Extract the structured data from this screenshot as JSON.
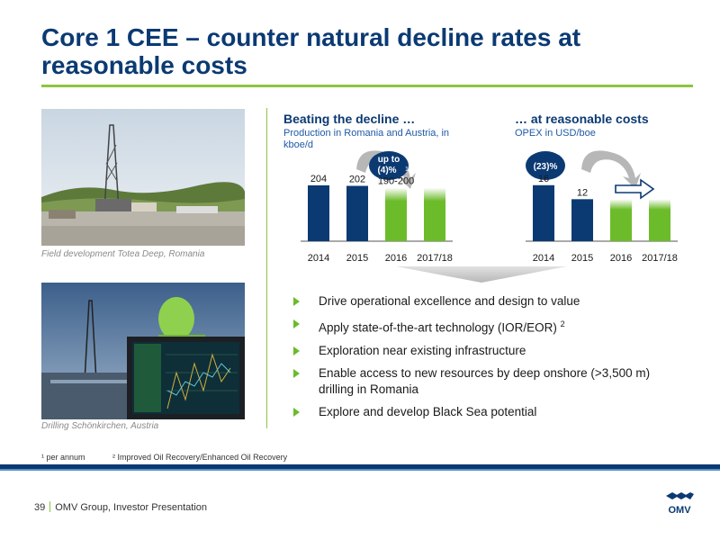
{
  "title": "Core 1 CEE – counter natural decline rates at reasonable costs",
  "photos": [
    {
      "caption": "Field development Totea Deep, Romania"
    },
    {
      "caption": "Drilling Schönkirchen, Austria"
    }
  ],
  "left_chart": {
    "heading": "Beating the decline …",
    "subtitle": "Production in Romania and Austria, in kboe/d",
    "badge": "up to (4)%",
    "badge_footnote": "1"
  },
  "right_chart": {
    "heading": "… at reasonable costs",
    "subtitle": "OPEX in USD/boe",
    "badge": "(23)%"
  },
  "chart_data": [
    {
      "type": "bar",
      "title": "Beating the decline …",
      "subtitle": "Production in Romania and Austria, in kboe/d",
      "categories": [
        "2014",
        "2015",
        "2016",
        "2017/18"
      ],
      "values": [
        204,
        202,
        195,
        195
      ],
      "data_labels": [
        "204",
        "202",
        "190-200",
        ""
      ],
      "colors": [
        "#0b3a73",
        "#0b3a73",
        "#6cbb2a",
        "#6cbb2a"
      ],
      "ylim": [
        0,
        230
      ]
    },
    {
      "type": "bar",
      "title": "… at reasonable costs",
      "subtitle": "OPEX in USD/boe",
      "categories": [
        "2014",
        "2015",
        "2016",
        "2017/18"
      ],
      "values": [
        16,
        12,
        12,
        12
      ],
      "data_labels": [
        "16",
        "12",
        "",
        ""
      ],
      "colors": [
        "#0b3a73",
        "#0b3a73",
        "#6cbb2a",
        "#6cbb2a"
      ],
      "ylim": [
        0,
        18
      ]
    }
  ],
  "bullets": [
    {
      "text": "Drive operational excellence and design to value",
      "sup": ""
    },
    {
      "text": "Apply state-of-the-art technology (IOR/EOR)",
      "sup": "2"
    },
    {
      "text": "Exploration near existing infrastructure",
      "sup": ""
    },
    {
      "text": "Enable access to new resources by deep onshore (>3,500 m) drilling in Romania",
      "sup": ""
    },
    {
      "text": "Explore and develop Black Sea potential",
      "sup": ""
    }
  ],
  "footnotes": [
    "¹ per annum",
    "² Improved Oil Recovery/Enhanced Oil Recovery"
  ],
  "footer": {
    "page": "39",
    "label": "OMV Group, Investor Presentation",
    "logo_text": "OMV"
  },
  "colors": {
    "navy": "#0b3a73",
    "green": "#6cbb2a",
    "accent_rule": "#8dc63f"
  }
}
